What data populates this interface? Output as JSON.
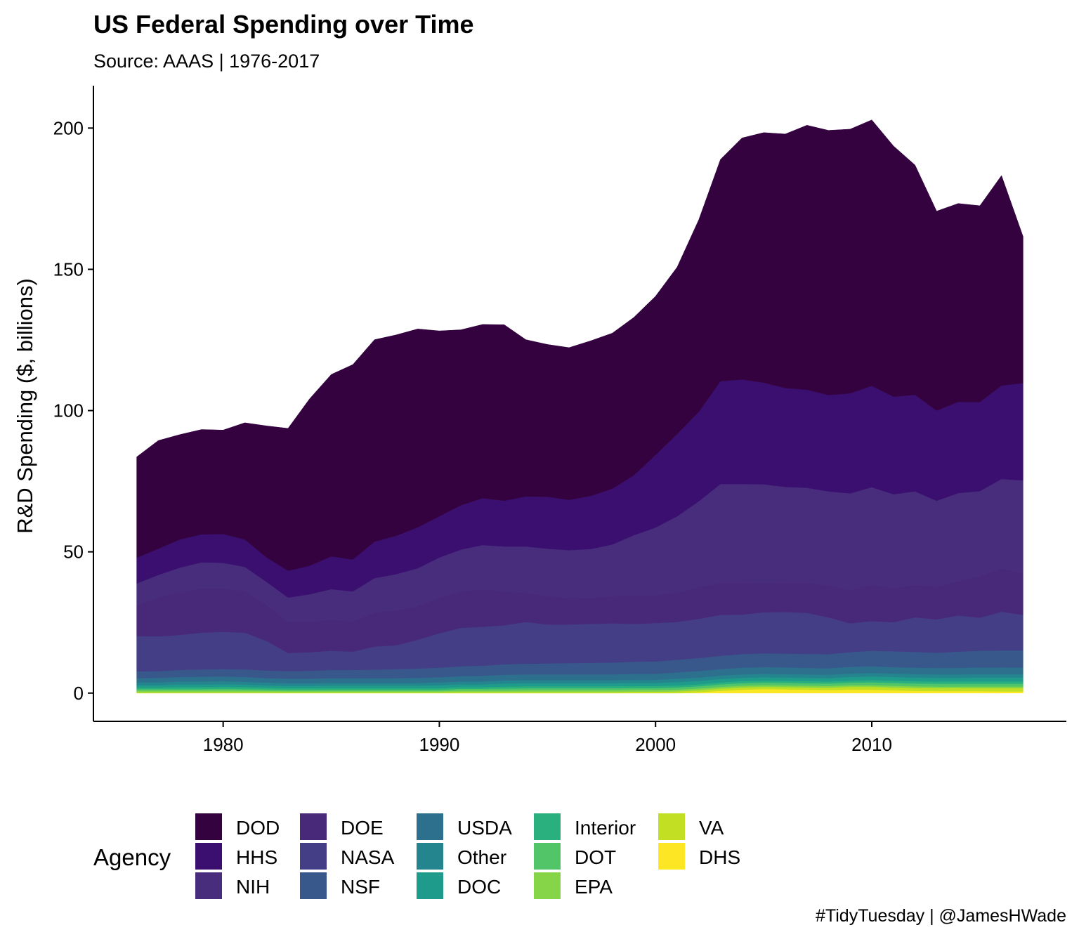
{
  "title": "US Federal Spending over Time",
  "subtitle": "Source: AAAS | 1976-2017",
  "caption": "#TidyTuesday | @JamesHWade",
  "chart_data": {
    "type": "area",
    "stacked": true,
    "ylabel": "R&D Spending ($, billions)",
    "xlabel": "",
    "xlim": [
      1974,
      2019
    ],
    "ylim": [
      -10,
      215
    ],
    "x_ticks": [
      1980,
      1990,
      2000,
      2010
    ],
    "y_ticks": [
      0,
      50,
      100,
      150,
      200
    ],
    "grid": false,
    "legend": {
      "title": "Agency",
      "position": "bottom"
    },
    "x": [
      1976,
      1977,
      1978,
      1979,
      1980,
      1981,
      1982,
      1983,
      1984,
      1985,
      1986,
      1987,
      1988,
      1989,
      1990,
      1991,
      1992,
      1993,
      1994,
      1995,
      1996,
      1997,
      1998,
      1999,
      2000,
      2001,
      2002,
      2003,
      2004,
      2005,
      2006,
      2007,
      2008,
      2009,
      2010,
      2011,
      2012,
      2013,
      2014,
      2015,
      2016,
      2017
    ],
    "series": [
      {
        "name": "DHS",
        "color": "#FDE725",
        "values": [
          0,
          0,
          0,
          0,
          0,
          0,
          0,
          0,
          0,
          0,
          0,
          0,
          0,
          0,
          0,
          0,
          0,
          0,
          0,
          0,
          0,
          0,
          0,
          0,
          0,
          0,
          0.3,
          0.8,
          1.2,
          1.4,
          1.3,
          1.2,
          1.1,
          1.2,
          1.2,
          1.0,
          0.8,
          0.7,
          0.7,
          0.7,
          0.6,
          0.6
        ]
      },
      {
        "name": "VA",
        "color": "#C2DF23",
        "values": [
          0.3,
          0.3,
          0.3,
          0.3,
          0.3,
          0.3,
          0.3,
          0.3,
          0.3,
          0.3,
          0.3,
          0.3,
          0.3,
          0.3,
          0.3,
          0.4,
          0.4,
          0.4,
          0.4,
          0.4,
          0.4,
          0.4,
          0.4,
          0.5,
          0.5,
          0.6,
          0.7,
          0.8,
          0.8,
          0.8,
          0.8,
          0.8,
          0.8,
          1.0,
          1.0,
          1.0,
          1.0,
          1.0,
          1.1,
          1.1,
          1.2,
          1.2
        ]
      },
      {
        "name": "EPA",
        "color": "#86D549",
        "values": [
          0.6,
          0.6,
          0.6,
          0.6,
          0.6,
          0.6,
          0.5,
          0.4,
          0.4,
          0.4,
          0.4,
          0.4,
          0.4,
          0.4,
          0.4,
          0.5,
          0.5,
          0.5,
          0.6,
          0.6,
          0.6,
          0.6,
          0.6,
          0.6,
          0.6,
          0.6,
          0.6,
          0.6,
          0.6,
          0.6,
          0.6,
          0.6,
          0.6,
          0.6,
          0.6,
          0.6,
          0.6,
          0.6,
          0.5,
          0.5,
          0.5,
          0.5
        ]
      },
      {
        "name": "DOT",
        "color": "#52C569",
        "values": [
          0.5,
          0.5,
          0.5,
          0.5,
          0.6,
          0.5,
          0.5,
          0.5,
          0.5,
          0.5,
          0.5,
          0.5,
          0.5,
          0.5,
          0.5,
          0.6,
          0.6,
          0.7,
          0.7,
          0.7,
          0.7,
          0.7,
          0.7,
          0.7,
          0.7,
          0.8,
          0.8,
          0.9,
          0.9,
          0.9,
          0.9,
          0.9,
          0.9,
          0.9,
          1.0,
          1.0,
          1.0,
          1.0,
          1.0,
          1.0,
          1.0,
          1.0
        ]
      },
      {
        "name": "Interior",
        "color": "#2AB07F",
        "values": [
          0.6,
          0.6,
          0.7,
          0.7,
          0.7,
          0.7,
          0.6,
          0.6,
          0.6,
          0.6,
          0.6,
          0.6,
          0.6,
          0.6,
          0.6,
          0.6,
          0.6,
          0.7,
          0.7,
          0.7,
          0.7,
          0.7,
          0.7,
          0.7,
          0.7,
          0.7,
          0.7,
          0.7,
          0.7,
          0.7,
          0.7,
          0.7,
          0.7,
          0.7,
          0.8,
          0.8,
          0.8,
          0.8,
          0.8,
          0.8,
          0.8,
          0.8
        ]
      },
      {
        "name": "DOC",
        "color": "#1E9B8A",
        "values": [
          0.8,
          0.8,
          0.9,
          0.9,
          0.9,
          0.9,
          0.8,
          0.8,
          0.8,
          0.9,
          0.9,
          0.9,
          0.9,
          0.9,
          1.0,
          1.0,
          1.0,
          1.1,
          1.1,
          1.1,
          1.1,
          1.1,
          1.1,
          1.1,
          1.1,
          1.2,
          1.2,
          1.2,
          1.2,
          1.2,
          1.2,
          1.2,
          1.2,
          1.3,
          1.3,
          1.3,
          1.3,
          1.3,
          1.3,
          1.4,
          1.4,
          1.4
        ]
      },
      {
        "name": "Other",
        "color": "#25858E",
        "values": [
          1.0,
          1.0,
          1.1,
          1.1,
          1.1,
          1.0,
          1.0,
          0.9,
          0.9,
          0.9,
          0.9,
          0.9,
          0.9,
          0.9,
          1.0,
          1.0,
          1.0,
          1.1,
          1.1,
          1.1,
          1.1,
          1.1,
          1.1,
          1.1,
          1.1,
          1.2,
          1.2,
          1.2,
          1.2,
          1.2,
          1.2,
          1.2,
          1.2,
          1.2,
          1.2,
          1.2,
          1.2,
          1.2,
          1.2,
          1.2,
          1.2,
          1.2
        ]
      },
      {
        "name": "USDA",
        "color": "#2D708E",
        "values": [
          1.5,
          1.6,
          1.6,
          1.7,
          1.7,
          1.7,
          1.6,
          1.6,
          1.6,
          1.7,
          1.7,
          1.7,
          1.7,
          1.8,
          1.8,
          1.9,
          2.0,
          2.0,
          2.0,
          2.0,
          2.0,
          2.0,
          2.0,
          2.1,
          2.1,
          2.2,
          2.3,
          2.3,
          2.4,
          2.4,
          2.4,
          2.3,
          2.3,
          2.4,
          2.4,
          2.3,
          2.3,
          2.3,
          2.3,
          2.4,
          2.4,
          2.4
        ]
      },
      {
        "name": "NSF",
        "color": "#38588C",
        "values": [
          2.4,
          2.4,
          2.5,
          2.6,
          2.6,
          2.7,
          2.7,
          2.7,
          2.8,
          2.9,
          2.9,
          3.0,
          3.2,
          3.3,
          3.4,
          3.5,
          3.6,
          3.7,
          3.8,
          3.9,
          4.0,
          4.1,
          4.2,
          4.3,
          4.4,
          4.5,
          4.6,
          4.7,
          4.8,
          4.9,
          4.9,
          5.0,
          5.0,
          5.2,
          5.5,
          5.6,
          5.6,
          5.4,
          5.8,
          5.9,
          6.0,
          6.0
        ]
      },
      {
        "name": "NASA",
        "color": "#433E85",
        "values": [
          12.5,
          12.3,
          12.4,
          13.0,
          13.2,
          13.0,
          10.5,
          6.4,
          6.6,
          6.8,
          6.5,
          8.2,
          8.4,
          10.2,
          12.2,
          13.6,
          13.8,
          13.8,
          14.8,
          13.8,
          13.7,
          13.8,
          13.9,
          13.4,
          13.6,
          13.4,
          13.9,
          14.5,
          14.0,
          14.5,
          14.7,
          14.5,
          13.0,
          10.2,
          10.5,
          10.3,
          12.2,
          11.8,
          12.8,
          11.7,
          13.7,
          12.6
        ]
      },
      {
        "name": "DOE",
        "color": "#482878",
        "values": [
          10.8,
          13.7,
          15.0,
          15.6,
          15.2,
          14.8,
          12.9,
          10.9,
          10.6,
          10.9,
          10.6,
          12.0,
          12.3,
          11.8,
          12.6,
          12.9,
          13.3,
          11.9,
          10.2,
          10.1,
          9.1,
          9.1,
          9.6,
          10.0,
          9.8,
          10.4,
          11.1,
          11.3,
          11.2,
          10.3,
          10.3,
          10.6,
          11.3,
          11.7,
          12.7,
          11.8,
          11.6,
          11.5,
          12.1,
          14.8,
          15.2,
          14.8
        ]
      },
      {
        "name": "NIH",
        "color": "#472D7B",
        "values": [
          7.8,
          8.0,
          8.8,
          9.3,
          9.2,
          8.5,
          8.0,
          8.7,
          9.9,
          10.9,
          10.7,
          12.2,
          12.9,
          13.5,
          14.2,
          14.8,
          15.6,
          16.0,
          16.5,
          16.7,
          17.2,
          17.4,
          18.3,
          21.4,
          24.0,
          27.0,
          30.5,
          35.0,
          35.0,
          35.0,
          34.0,
          33.7,
          33.3,
          34.3,
          34.7,
          33.5,
          33.0,
          30.5,
          31.2,
          30.0,
          31.8,
          32.8
        ]
      },
      {
        "name": "HHS",
        "color": "#3B0F70",
        "values": [
          9.1,
          9.3,
          10.0,
          9.9,
          10.2,
          9.7,
          8.7,
          9.5,
          10.1,
          11.6,
          11.3,
          12.9,
          13.6,
          14.5,
          14.6,
          15.7,
          16.6,
          16.2,
          17.7,
          18.4,
          17.8,
          18.8,
          19.8,
          21.2,
          25.7,
          29.1,
          31.7,
          36.4,
          37.0,
          36.0,
          35.0,
          34.7,
          34.1,
          35.4,
          35.9,
          34.5,
          34.2,
          31.9,
          32.3,
          31.5,
          33.1,
          34.4
        ]
      },
      {
        "name": "DOD",
        "color": "#33023F",
        "values": [
          35.7,
          38.3,
          37.1,
          37.1,
          36.8,
          41.3,
          46.5,
          50.4,
          59.1,
          64.4,
          69.0,
          71.5,
          71.1,
          70.2,
          65.6,
          62.1,
          61.5,
          62.3,
          55.5,
          53.9,
          53.9,
          54.9,
          55.0,
          55.9,
          56.2,
          59.1,
          68.0,
          78.5,
          85.5,
          88.5,
          89.9,
          93.6,
          93.7,
          93.5,
          94.1,
          88.8,
          81.3,
          70.6,
          70.2,
          69.5,
          74.3,
          51.9
        ]
      }
    ]
  },
  "legend_columns": [
    [
      {
        "label": "DOD",
        "color": "#33023F"
      },
      {
        "label": "HHS",
        "color": "#3B0F70"
      },
      {
        "label": "NIH",
        "color": "#472D7B"
      }
    ],
    [
      {
        "label": "DOE",
        "color": "#482878"
      },
      {
        "label": "NASA",
        "color": "#433E85"
      },
      {
        "label": "NSF",
        "color": "#38588C"
      }
    ],
    [
      {
        "label": "USDA",
        "color": "#2D708E"
      },
      {
        "label": "Other",
        "color": "#25858E"
      },
      {
        "label": "DOC",
        "color": "#1E9B8A"
      }
    ],
    [
      {
        "label": "Interior",
        "color": "#2AB07F"
      },
      {
        "label": "DOT",
        "color": "#52C569"
      },
      {
        "label": "EPA",
        "color": "#86D549"
      }
    ],
    [
      {
        "label": "VA",
        "color": "#C2DF23"
      },
      {
        "label": "DHS",
        "color": "#FDE725"
      }
    ]
  ]
}
